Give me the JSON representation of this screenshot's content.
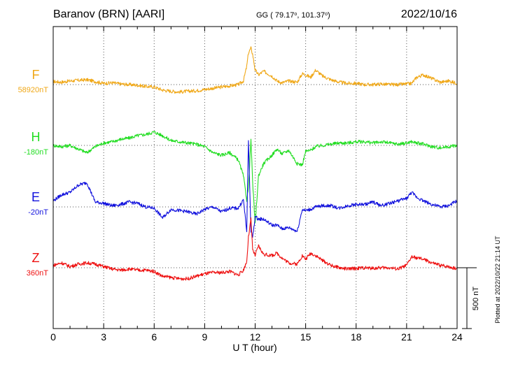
{
  "header": {
    "station": "Baranov (BRN)  [AARI]",
    "coords_prefix": "GG ( 79.17",
    "coords_mid": ", 101.37",
    "coords_suffix": ")",
    "date": "2022/10/16"
  },
  "side_note": "Plotted at 2022/10/22 21:14 UT",
  "scale_bar_label": "500 nT",
  "chart_data": {
    "type": "line",
    "xlabel": "U T (hour)",
    "xlim": [
      0,
      24
    ],
    "xticks": [
      0,
      3,
      6,
      9,
      12,
      15,
      18,
      21,
      24
    ],
    "x_minor_step": 1,
    "grid": true,
    "scale_bar_nT": 500,
    "series": [
      {
        "name": "F",
        "baseline_label": "58920nT",
        "color": "#f0a818",
        "x": [
          0,
          0.5,
          1,
          1.5,
          2,
          2.5,
          3,
          3.5,
          4,
          4.5,
          5,
          5.5,
          6,
          6.5,
          7,
          7.5,
          8,
          8.5,
          9,
          9.5,
          10,
          10.5,
          11,
          11.3,
          11.5,
          11.6,
          11.75,
          11.85,
          12,
          12.2,
          12.5,
          13,
          13.3,
          13.6,
          14,
          14.5,
          14.8,
          15,
          15.3,
          15.6,
          16,
          16.5,
          17,
          17.5,
          18,
          18.5,
          19,
          19.5,
          20,
          20.5,
          21,
          21.3,
          21.6,
          22,
          22.5,
          23,
          23.5,
          24
        ],
        "y": [
          25,
          20,
          30,
          35,
          40,
          25,
          10,
          15,
          5,
          0,
          -5,
          -15,
          -20,
          -45,
          -55,
          -60,
          -55,
          -50,
          -40,
          -30,
          -20,
          -10,
          0,
          30,
          150,
          260,
          300,
          250,
          120,
          80,
          110,
          70,
          30,
          15,
          30,
          20,
          90,
          80,
          60,
          120,
          70,
          40,
          20,
          10,
          10,
          0,
          0,
          5,
          0,
          0,
          5,
          10,
          60,
          80,
          50,
          20,
          30,
          10
        ]
      },
      {
        "name": "H",
        "baseline_label": "-180nT",
        "color": "#22dd22",
        "x": [
          0,
          0.5,
          1,
          1.5,
          2,
          2.5,
          3,
          3.5,
          4,
          4.5,
          5,
          5.5,
          6,
          6.5,
          7,
          7.5,
          8,
          8.5,
          9,
          9.5,
          10,
          10.5,
          11,
          11.3,
          11.5,
          11.6,
          11.75,
          11.85,
          12,
          12.2,
          12.5,
          13,
          13.3,
          13.6,
          14,
          14.5,
          14.8,
          15,
          15.3,
          15.6,
          16,
          16.5,
          17,
          17.5,
          18,
          18.5,
          19,
          19.5,
          20,
          20.5,
          21,
          21.3,
          21.6,
          22,
          22.5,
          23,
          23.5,
          24
        ],
        "y": [
          0,
          -10,
          0,
          -30,
          -60,
          -10,
          20,
          30,
          50,
          60,
          80,
          90,
          110,
          80,
          40,
          30,
          20,
          10,
          -10,
          -60,
          -80,
          -60,
          -120,
          -250,
          -450,
          -350,
          50,
          -300,
          -650,
          -250,
          -150,
          -80,
          -30,
          -70,
          -40,
          -150,
          -160,
          -50,
          -40,
          -10,
          0,
          10,
          20,
          20,
          30,
          30,
          20,
          30,
          20,
          10,
          20,
          30,
          20,
          10,
          -10,
          -20,
          -10,
          0
        ]
      },
      {
        "name": "E",
        "baseline_label": "-20nT",
        "color": "#1111dd",
        "x": [
          0,
          0.5,
          1,
          1.5,
          2,
          2.5,
          3,
          3.5,
          4,
          4.5,
          5,
          5.5,
          6,
          6.5,
          7,
          7.5,
          8,
          8.5,
          9,
          9.5,
          10,
          10.5,
          11,
          11.3,
          11.5,
          11.6,
          11.75,
          11.85,
          12,
          12.2,
          12.5,
          13,
          13.3,
          13.6,
          14,
          14.5,
          14.8,
          15,
          15.3,
          15.6,
          16,
          16.5,
          17,
          17.5,
          18,
          18.5,
          19,
          19.5,
          20,
          20.5,
          21,
          21.3,
          21.6,
          22,
          22.5,
          23,
          23.5,
          24
        ],
        "y": [
          50,
          100,
          120,
          180,
          200,
          40,
          30,
          10,
          20,
          40,
          30,
          0,
          -10,
          -90,
          -20,
          -30,
          -40,
          -60,
          -20,
          0,
          -40,
          -10,
          -10,
          60,
          -200,
          550,
          -200,
          -250,
          -80,
          -100,
          -100,
          -150,
          -150,
          -180,
          -170,
          -200,
          -20,
          -30,
          -20,
          0,
          10,
          10,
          -10,
          10,
          20,
          20,
          40,
          10,
          30,
          50,
          70,
          120,
          80,
          50,
          20,
          0,
          10,
          50
        ]
      },
      {
        "name": "Z",
        "baseline_label": "360nT",
        "color": "#ee1111",
        "x": [
          0,
          0.5,
          1,
          1.5,
          2,
          2.5,
          3,
          3.5,
          4,
          4.5,
          5,
          5.5,
          6,
          6.5,
          7,
          7.5,
          8,
          8.5,
          9,
          9.5,
          10,
          10.5,
          11,
          11.3,
          11.5,
          11.6,
          11.75,
          11.85,
          12,
          12.2,
          12.5,
          13,
          13.3,
          13.6,
          14,
          14.5,
          14.8,
          15,
          15.3,
          15.6,
          16,
          16.5,
          17,
          17.5,
          18,
          18.5,
          19,
          19.5,
          20,
          20.5,
          21,
          21.3,
          21.6,
          22,
          22.5,
          23,
          23.5,
          24
        ],
        "y": [
          20,
          40,
          10,
          30,
          40,
          30,
          10,
          -10,
          -20,
          -10,
          -20,
          -20,
          -30,
          -70,
          -80,
          -90,
          -90,
          -70,
          -50,
          -40,
          -40,
          -30,
          -60,
          -20,
          50,
          250,
          400,
          150,
          100,
          180,
          110,
          100,
          120,
          80,
          40,
          30,
          100,
          70,
          120,
          100,
          60,
          20,
          0,
          -10,
          -5,
          0,
          -5,
          0,
          0,
          -10,
          20,
          90,
          80,
          70,
          40,
          20,
          10,
          -10
        ]
      }
    ]
  }
}
